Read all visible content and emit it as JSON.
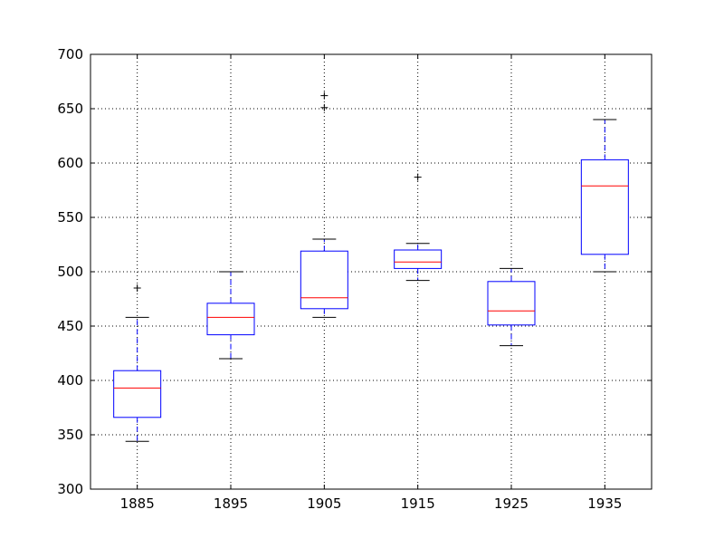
{
  "chart_data": {
    "type": "box",
    "title": "",
    "xlabel": "",
    "ylabel": "",
    "ylim": [
      300,
      700
    ],
    "yticks": [
      300,
      350,
      400,
      450,
      500,
      550,
      600,
      650,
      700
    ],
    "ytick_labels": [
      "300",
      "350",
      "400",
      "450",
      "500",
      "550",
      "600",
      "650",
      "700"
    ],
    "grid": true,
    "categories": [
      "1885",
      "1895",
      "1905",
      "1915",
      "1925",
      "1935"
    ],
    "boxes": [
      {
        "category": "1885",
        "whisker_low": 344,
        "q1": 366,
        "median": 393,
        "q3": 409,
        "whisker_high": 458,
        "outliers": [
          485
        ]
      },
      {
        "category": "1895",
        "whisker_low": 420,
        "q1": 442,
        "median": 458,
        "q3": 471,
        "whisker_high": 500,
        "outliers": []
      },
      {
        "category": "1905",
        "whisker_low": 458,
        "q1": 466,
        "median": 476,
        "q3": 519,
        "whisker_high": 530,
        "outliers": [
          651,
          662
        ]
      },
      {
        "category": "1915",
        "whisker_low": 492,
        "q1": 503,
        "median": 509,
        "q3": 520,
        "whisker_high": 526,
        "outliers": [
          587
        ]
      },
      {
        "category": "1925",
        "whisker_low": 432,
        "q1": 451,
        "median": 464,
        "q3": 491,
        "whisker_high": 503,
        "outliers": []
      },
      {
        "category": "1935",
        "whisker_low": 500,
        "q1": 516,
        "median": 579,
        "q3": 603,
        "whisker_high": 640,
        "outliers": []
      }
    ],
    "colors": {
      "box": "#0000ff",
      "whisker": "#0000ff",
      "cap": "#000000",
      "median": "#ff0000",
      "outlier": "#000000",
      "grid": "#000000",
      "axes": "#000000"
    }
  }
}
